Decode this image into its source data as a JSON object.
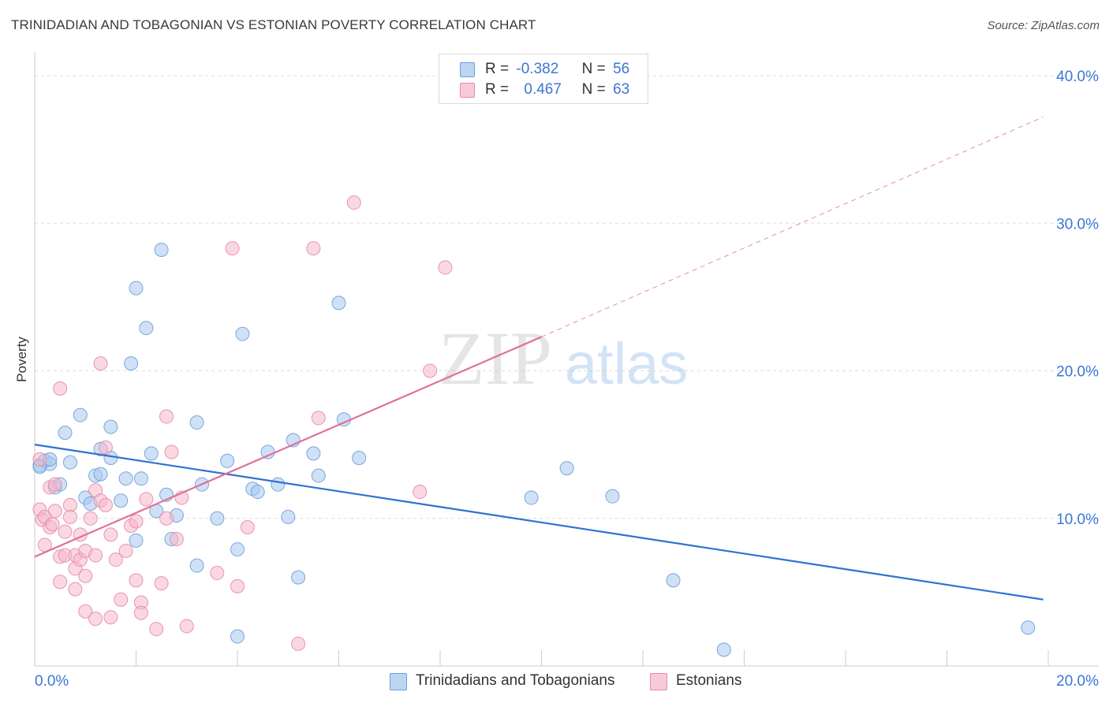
{
  "title": "TRINIDADIAN AND TOBAGONIAN VS ESTONIAN POVERTY CORRELATION CHART",
  "source": "Source: ZipAtlas.com",
  "watermark": {
    "zip": "ZIP",
    "atlas": "atlas"
  },
  "legend": {
    "r_label": "R =",
    "n_label": "N =",
    "series": [
      {
        "r": "-0.382",
        "n": "56"
      },
      {
        "r": "0.467",
        "n": "63"
      }
    ]
  },
  "colors": {
    "blue_fill": "#a9c8ef",
    "blue_stroke": "#6a9fdc",
    "blue_line": "#2f72d0",
    "pink_fill": "#f5b8cb",
    "pink_stroke": "#e889a8",
    "pink_line": "#e0709a",
    "axis_label": "#3b76d4",
    "grid": "#dddddd"
  },
  "chart_data": {
    "type": "scatter",
    "title": "TRINIDADIAN AND TOBAGONIAN VS ESTONIAN POVERTY CORRELATION CHART",
    "xlabel": "",
    "ylabel": "Poverty",
    "xlim": [
      0,
      20
    ],
    "ylim": [
      0,
      40
    ],
    "x_tick_labels": [
      "0.0%",
      "20.0%"
    ],
    "y_ticks": [
      10,
      20,
      30,
      40
    ],
    "y_tick_labels": [
      "10.0%",
      "20.0%",
      "30.0%",
      "40.0%"
    ],
    "grid": true,
    "series": [
      {
        "name": "Trinidadians and Tobagonians",
        "color": "#a9c8ef",
        "trend": {
          "x0": 0,
          "y0": 15.0,
          "x1": 19.9,
          "y1": 4.5,
          "dashed_extension": false
        },
        "points": [
          [
            0.1,
            13.6
          ],
          [
            0.2,
            13.9
          ],
          [
            0.3,
            13.7
          ],
          [
            0.4,
            12.1
          ],
          [
            0.5,
            12.3
          ],
          [
            0.6,
            15.8
          ],
          [
            0.7,
            13.8
          ],
          [
            0.9,
            17.0
          ],
          [
            1.0,
            11.4
          ],
          [
            1.1,
            11.0
          ],
          [
            1.2,
            12.9
          ],
          [
            1.3,
            13.0
          ],
          [
            1.3,
            14.7
          ],
          [
            1.5,
            16.2
          ],
          [
            1.5,
            14.1
          ],
          [
            1.7,
            11.2
          ],
          [
            1.8,
            12.7
          ],
          [
            1.9,
            20.5
          ],
          [
            2.0,
            25.6
          ],
          [
            2.0,
            8.5
          ],
          [
            2.1,
            12.7
          ],
          [
            2.2,
            22.9
          ],
          [
            2.3,
            14.4
          ],
          [
            2.4,
            10.5
          ],
          [
            2.5,
            28.2
          ],
          [
            2.6,
            11.6
          ],
          [
            2.7,
            8.6
          ],
          [
            2.8,
            10.2
          ],
          [
            3.2,
            6.8
          ],
          [
            3.2,
            16.5
          ],
          [
            3.3,
            12.3
          ],
          [
            3.6,
            10.0
          ],
          [
            3.8,
            13.9
          ],
          [
            4.0,
            2.0
          ],
          [
            4.0,
            7.9
          ],
          [
            4.1,
            22.5
          ],
          [
            4.3,
            12.0
          ],
          [
            4.4,
            11.8
          ],
          [
            4.6,
            14.5
          ],
          [
            4.8,
            12.3
          ],
          [
            5.0,
            10.1
          ],
          [
            5.1,
            15.3
          ],
          [
            5.2,
            6.0
          ],
          [
            5.5,
            14.4
          ],
          [
            5.6,
            12.9
          ],
          [
            6.0,
            24.6
          ],
          [
            6.1,
            16.7
          ],
          [
            6.4,
            14.1
          ],
          [
            9.8,
            11.4
          ],
          [
            10.5,
            13.4
          ],
          [
            11.4,
            11.5
          ],
          [
            12.6,
            5.8
          ],
          [
            13.6,
            1.1
          ],
          [
            19.6,
            2.6
          ],
          [
            0.1,
            13.5
          ],
          [
            0.3,
            14.0
          ]
        ]
      },
      {
        "name": "Estonians",
        "color": "#f5b8cb",
        "trend": {
          "x0": 0,
          "y0": 7.4,
          "x1": 10.0,
          "y1": 22.3,
          "dashed_extension": true,
          "dash_x1": 19.9,
          "dash_y1": 37.2
        },
        "points": [
          [
            0.1,
            14.0
          ],
          [
            0.1,
            10.6
          ],
          [
            0.15,
            9.9
          ],
          [
            0.2,
            10.1
          ],
          [
            0.2,
            8.2
          ],
          [
            0.3,
            12.1
          ],
          [
            0.3,
            9.4
          ],
          [
            0.35,
            9.6
          ],
          [
            0.4,
            12.3
          ],
          [
            0.4,
            10.5
          ],
          [
            0.5,
            7.4
          ],
          [
            0.5,
            18.8
          ],
          [
            0.5,
            5.7
          ],
          [
            0.6,
            9.1
          ],
          [
            0.6,
            7.5
          ],
          [
            0.7,
            10.9
          ],
          [
            0.7,
            10.1
          ],
          [
            0.8,
            7.5
          ],
          [
            0.8,
            6.6
          ],
          [
            0.8,
            5.2
          ],
          [
            0.9,
            8.9
          ],
          [
            0.9,
            7.2
          ],
          [
            1.0,
            6.1
          ],
          [
            1.0,
            3.7
          ],
          [
            1.0,
            7.8
          ],
          [
            1.1,
            10.0
          ],
          [
            1.2,
            11.9
          ],
          [
            1.2,
            7.5
          ],
          [
            1.2,
            3.2
          ],
          [
            1.3,
            11.2
          ],
          [
            1.3,
            20.5
          ],
          [
            1.4,
            10.9
          ],
          [
            1.4,
            14.8
          ],
          [
            1.5,
            3.3
          ],
          [
            1.5,
            8.9
          ],
          [
            1.6,
            7.2
          ],
          [
            1.7,
            4.5
          ],
          [
            1.8,
            7.8
          ],
          [
            1.9,
            9.5
          ],
          [
            2.0,
            9.8
          ],
          [
            2.0,
            5.8
          ],
          [
            2.1,
            4.3
          ],
          [
            2.1,
            3.6
          ],
          [
            2.2,
            11.3
          ],
          [
            2.4,
            2.5
          ],
          [
            2.5,
            5.6
          ],
          [
            2.6,
            10.0
          ],
          [
            2.6,
            16.9
          ],
          [
            2.7,
            14.5
          ],
          [
            2.8,
            8.6
          ],
          [
            2.9,
            11.4
          ],
          [
            3.0,
            2.7
          ],
          [
            3.6,
            6.3
          ],
          [
            3.9,
            28.3
          ],
          [
            4.0,
            5.4
          ],
          [
            4.2,
            9.4
          ],
          [
            5.2,
            1.5
          ],
          [
            5.5,
            28.3
          ],
          [
            5.6,
            16.8
          ],
          [
            6.3,
            31.4
          ],
          [
            7.8,
            20.0
          ],
          [
            7.6,
            11.8
          ],
          [
            8.1,
            27.0
          ]
        ]
      }
    ]
  }
}
